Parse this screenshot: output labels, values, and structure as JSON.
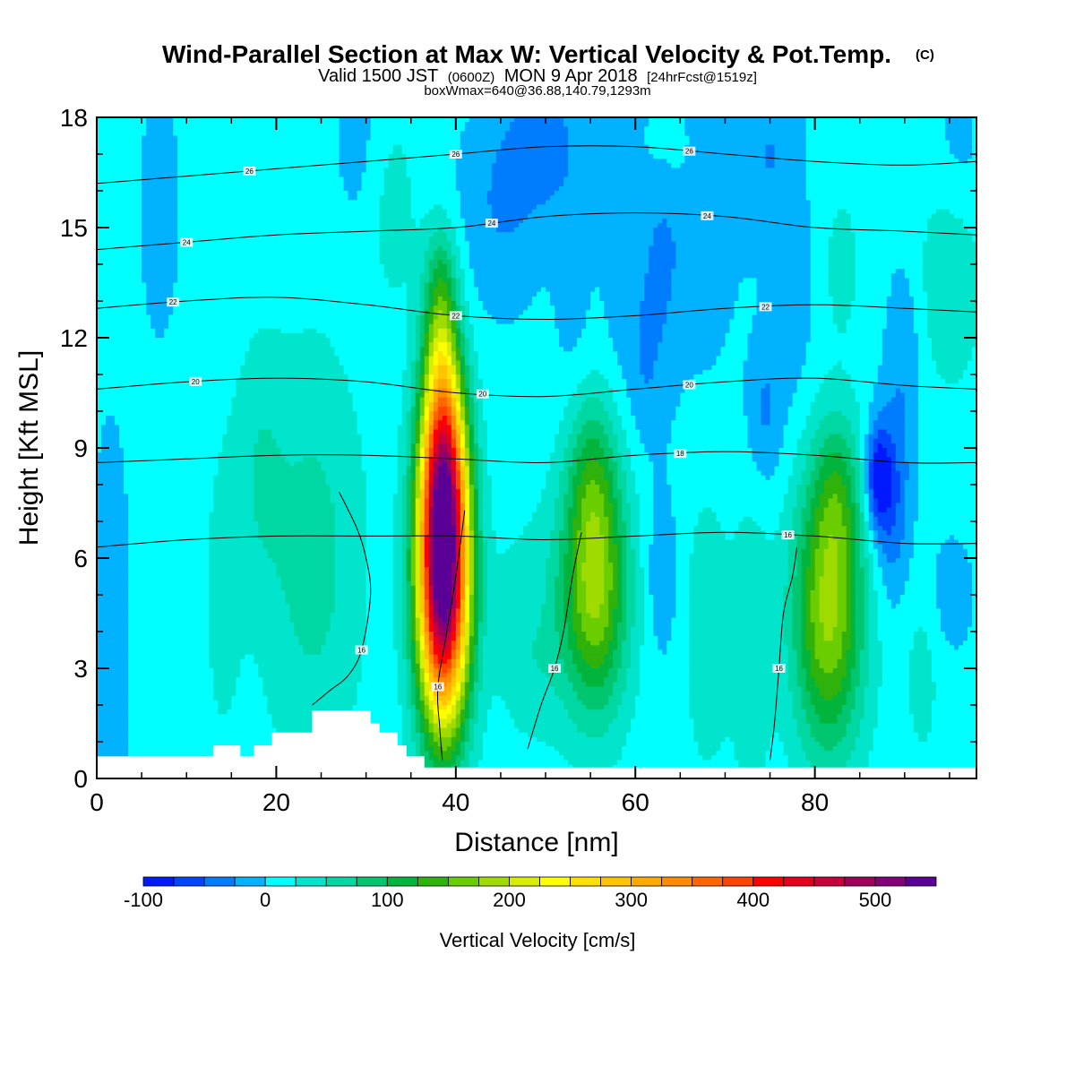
{
  "title": {
    "main": "Wind-Parallel Section at Max W: Vertical Velocity & Pot.Temp.",
    "copyright": "(C)",
    "valid_a": "Valid 1500 JST",
    "valid_z": "(0600Z)",
    "valid_b": "MON 9 Apr 2018",
    "valid_fcst": "[24hrFcst@1519z]",
    "box": "boxWmax=640@36.88,140.79,1293m"
  },
  "chart_data": {
    "type": "heatmap",
    "xlabel": "Distance [nm]",
    "ylabel": "Height [Kft MSL]",
    "xlim": [
      0,
      98
    ],
    "ylim": [
      0,
      18
    ],
    "x_ticks": [
      {
        "value": 0,
        "label": "0"
      },
      {
        "value": 20,
        "label": "20"
      },
      {
        "value": 40,
        "label": "40"
      },
      {
        "value": 60,
        "label": "60"
      },
      {
        "value": 80,
        "label": "80"
      }
    ],
    "y_ticks": [
      {
        "value": 0,
        "label": "0"
      },
      {
        "value": 3,
        "label": "3"
      },
      {
        "value": 6,
        "label": "6"
      },
      {
        "value": 9,
        "label": "9"
      },
      {
        "value": 12,
        "label": "12"
      },
      {
        "value": 15,
        "label": "15"
      },
      {
        "value": 18,
        "label": "18"
      }
    ],
    "background_w": 10,
    "updraft_cells": [
      {
        "x": 38.6,
        "y": 5.4,
        "sx": 2.0,
        "sy": 2.8,
        "amp": 540
      },
      {
        "x": 38.6,
        "y": 8.8,
        "sx": 1.7,
        "sy": 2.0,
        "amp": 230
      },
      {
        "x": 38.3,
        "y": 12.0,
        "sx": 1.4,
        "sy": 1.5,
        "amp": 110
      },
      {
        "x": 38.4,
        "y": 14.0,
        "sx": 1.3,
        "sy": 1.0,
        "amp": 40
      },
      {
        "x": 55.5,
        "y": 5.2,
        "sx": 2.6,
        "sy": 2.4,
        "amp": 170
      },
      {
        "x": 55.2,
        "y": 8.4,
        "sx": 2.0,
        "sy": 1.6,
        "amp": 60
      },
      {
        "x": 81.5,
        "y": 4.5,
        "sx": 2.8,
        "sy": 2.7,
        "amp": 170
      },
      {
        "x": 82.5,
        "y": 7.8,
        "sx": 1.8,
        "sy": 1.5,
        "amp": 60
      },
      {
        "x": 24.0,
        "y": 6.0,
        "sx": 4.0,
        "sy": 4.0,
        "amp": 50
      },
      {
        "x": 18.0,
        "y": 8.5,
        "sx": 2.0,
        "sy": 2.5,
        "amp": 30
      },
      {
        "x": 14.0,
        "y": 5.0,
        "sx": 1.5,
        "sy": 3.0,
        "amp": 25
      },
      {
        "x": 48.5,
        "y": 4.0,
        "sx": 3.0,
        "sy": 2.0,
        "amp": 40
      },
      {
        "x": 68.0,
        "y": 4.0,
        "sx": 2.0,
        "sy": 3.0,
        "amp": 30
      },
      {
        "x": 73.0,
        "y": 3.5,
        "sx": 1.5,
        "sy": 3.0,
        "amp": 35
      },
      {
        "x": 92.0,
        "y": 3.0,
        "sx": 1.5,
        "sy": 2.0,
        "amp": 25
      },
      {
        "x": 95.0,
        "y": 13.5,
        "sx": 2.5,
        "sy": 2.0,
        "amp": 40
      },
      {
        "x": 64.0,
        "y": 17.0,
        "sx": 3.0,
        "sy": 1.0,
        "amp": 20
      },
      {
        "x": 83.0,
        "y": 14.0,
        "sx": 1.5,
        "sy": 1.5,
        "amp": 25
      },
      {
        "x": 33.0,
        "y": 15.5,
        "sx": 2.0,
        "sy": 2.0,
        "amp": 25
      }
    ],
    "downdraft_cells": [
      {
        "x": 1.5,
        "y": 4.0,
        "sx": 1.5,
        "sy": 4.0,
        "amp": -30
      },
      {
        "x": 7.0,
        "y": 15.5,
        "sx": 1.8,
        "sy": 3.0,
        "amp": -20
      },
      {
        "x": 29.0,
        "y": 17.5,
        "sx": 2.0,
        "sy": 2.0,
        "amp": -20
      },
      {
        "x": 45.0,
        "y": 15.5,
        "sx": 3.5,
        "sy": 2.0,
        "amp": -35
      },
      {
        "x": 50.0,
        "y": 17.3,
        "sx": 3.0,
        "sy": 1.3,
        "amp": -45
      },
      {
        "x": 53.0,
        "y": 13.0,
        "sx": 1.5,
        "sy": 2.0,
        "amp": -20
      },
      {
        "x": 59.0,
        "y": 15.0,
        "sx": 2.0,
        "sy": 3.5,
        "amp": -30
      },
      {
        "x": 61.0,
        "y": 11.0,
        "sx": 1.2,
        "sy": 1.5,
        "amp": -20
      },
      {
        "x": 63.0,
        "y": 14.0,
        "sx": 1.5,
        "sy": 3.0,
        "amp": -30
      },
      {
        "x": 67.5,
        "y": 15.5,
        "sx": 2.5,
        "sy": 3.0,
        "amp": -35
      },
      {
        "x": 75.0,
        "y": 17.0,
        "sx": 2.5,
        "sy": 2.0,
        "amp": -35
      },
      {
        "x": 74.5,
        "y": 10.0,
        "sx": 1.5,
        "sy": 1.5,
        "amp": -40
      },
      {
        "x": 78.0,
        "y": 12.5,
        "sx": 1.5,
        "sy": 2.0,
        "amp": -20
      },
      {
        "x": 87.0,
        "y": 8.2,
        "sx": 1.0,
        "sy": 1.0,
        "amp": -90
      },
      {
        "x": 88.5,
        "y": 7.5,
        "sx": 1.5,
        "sy": 1.8,
        "amp": -60
      },
      {
        "x": 90.0,
        "y": 11.5,
        "sx": 1.5,
        "sy": 2.0,
        "amp": -30
      },
      {
        "x": 63.0,
        "y": 5.5,
        "sx": 1.2,
        "sy": 1.5,
        "amp": -35
      },
      {
        "x": 48.5,
        "y": 5.0,
        "sx": 1.2,
        "sy": 0.8,
        "amp": -15
      },
      {
        "x": 95.0,
        "y": 5.0,
        "sx": 2.0,
        "sy": 1.2,
        "amp": -25
      },
      {
        "x": 96.0,
        "y": 17.0,
        "sx": 2.0,
        "sy": 1.5,
        "amp": -20
      }
    ],
    "terrain": [
      [
        0,
        0.6
      ],
      [
        13,
        0.6
      ],
      [
        13,
        0.9
      ],
      [
        16,
        0.9
      ],
      [
        16,
        0.6
      ],
      [
        17.5,
        0.6
      ],
      [
        17.5,
        0.9
      ],
      [
        19.5,
        0.9
      ],
      [
        19.5,
        1.25
      ],
      [
        24,
        1.25
      ],
      [
        24,
        1.85
      ],
      [
        30.5,
        1.85
      ],
      [
        30.5,
        1.5
      ],
      [
        31.5,
        1.5
      ],
      [
        31.5,
        1.25
      ],
      [
        33.5,
        1.25
      ],
      [
        33.5,
        0.9
      ],
      [
        34.5,
        0.9
      ],
      [
        34.5,
        0.6
      ],
      [
        36.5,
        0.6
      ],
      [
        36.5,
        0.3
      ],
      [
        98,
        0.3
      ]
    ],
    "theta_contours": [
      {
        "label": "16",
        "points": [
          [
            0,
            6.3
          ],
          [
            10,
            6.5
          ],
          [
            20,
            6.6
          ],
          [
            30,
            6.6
          ],
          [
            40,
            6.6
          ],
          [
            50,
            6.5
          ],
          [
            60,
            6.6
          ],
          [
            70,
            6.7
          ],
          [
            80,
            6.6
          ],
          [
            90,
            6.4
          ],
          [
            98,
            6.4
          ]
        ],
        "labels_at": [
          77
        ]
      },
      {
        "label": "18",
        "points": [
          [
            0,
            8.6
          ],
          [
            10,
            8.7
          ],
          [
            20,
            8.8
          ],
          [
            30,
            8.8
          ],
          [
            40,
            8.7
          ],
          [
            50,
            8.6
          ],
          [
            60,
            8.8
          ],
          [
            70,
            8.9
          ],
          [
            80,
            8.8
          ],
          [
            90,
            8.6
          ],
          [
            98,
            8.6
          ]
        ],
        "labels_at": [
          65
        ]
      },
      {
        "label": "20",
        "points": [
          [
            0,
            10.6
          ],
          [
            10,
            10.8
          ],
          [
            20,
            10.9
          ],
          [
            30,
            10.8
          ],
          [
            40,
            10.5
          ],
          [
            50,
            10.4
          ],
          [
            60,
            10.6
          ],
          [
            70,
            10.8
          ],
          [
            80,
            10.9
          ],
          [
            90,
            10.7
          ],
          [
            98,
            10.6
          ]
        ],
        "labels_at": [
          11,
          43,
          66
        ]
      },
      {
        "label": "22",
        "points": [
          [
            0,
            12.8
          ],
          [
            10,
            13.0
          ],
          [
            20,
            13.1
          ],
          [
            30,
            12.9
          ],
          [
            40,
            12.6
          ],
          [
            50,
            12.5
          ],
          [
            60,
            12.6
          ],
          [
            70,
            12.8
          ],
          [
            80,
            12.9
          ],
          [
            90,
            12.8
          ],
          [
            98,
            12.7
          ]
        ],
        "labels_at": [
          8.5,
          40,
          74.5
        ]
      },
      {
        "label": "24",
        "points": [
          [
            0,
            14.4
          ],
          [
            10,
            14.6
          ],
          [
            20,
            14.8
          ],
          [
            30,
            14.9
          ],
          [
            40,
            15.0
          ],
          [
            50,
            15.3
          ],
          [
            60,
            15.4
          ],
          [
            70,
            15.3
          ],
          [
            80,
            15.0
          ],
          [
            90,
            14.9
          ],
          [
            98,
            14.8
          ]
        ],
        "labels_at": [
          10,
          44,
          68
        ]
      },
      {
        "label": "26",
        "points": [
          [
            0,
            16.2
          ],
          [
            10,
            16.4
          ],
          [
            20,
            16.6
          ],
          [
            30,
            16.8
          ],
          [
            40,
            17.0
          ],
          [
            50,
            17.2
          ],
          [
            60,
            17.2
          ],
          [
            70,
            17.0
          ],
          [
            80,
            16.8
          ],
          [
            90,
            16.7
          ],
          [
            98,
            16.8
          ]
        ],
        "labels_at": [
          17,
          40,
          66
        ]
      }
    ],
    "theta16_loops": [
      [
        [
          27,
          7.8
        ],
        [
          29,
          6.8
        ],
        [
          30,
          6.0
        ],
        [
          30.5,
          5.0
        ],
        [
          29.5,
          3.5
        ],
        [
          28,
          2.8
        ],
        [
          26,
          2.4
        ],
        [
          24,
          2.0
        ]
      ],
      [
        [
          41,
          7.3
        ],
        [
          40,
          5.5
        ],
        [
          39,
          4.0
        ],
        [
          38,
          2.5
        ],
        [
          38.2,
          1.4
        ],
        [
          38.5,
          0.5
        ]
      ],
      [
        [
          54,
          6.7
        ],
        [
          53,
          5.5
        ],
        [
          52,
          4.0
        ],
        [
          51,
          3.0
        ],
        [
          49.5,
          2.0
        ],
        [
          48,
          0.8
        ]
      ],
      [
        [
          78,
          6.3
        ],
        [
          77.5,
          5.5
        ],
        [
          76.5,
          4.5
        ],
        [
          76,
          3.0
        ],
        [
          75.5,
          1.5
        ],
        [
          75,
          0.5
        ]
      ]
    ],
    "colorbar": {
      "label": "Vertical Velocity [cm/s]",
      "min": -100,
      "max": 550,
      "tick_labels": [
        {
          "value": -100,
          "label": "-100"
        },
        {
          "value": 0,
          "label": "0"
        },
        {
          "value": 100,
          "label": "100"
        },
        {
          "value": 200,
          "label": "200"
        },
        {
          "value": 300,
          "label": "300"
        },
        {
          "value": 400,
          "label": "400"
        },
        {
          "value": 500,
          "label": "500"
        }
      ],
      "bins": [
        {
          "from": -100,
          "to": -75,
          "color": "#0019ff"
        },
        {
          "from": -75,
          "to": -50,
          "color": "#0046ff"
        },
        {
          "from": -50,
          "to": -25,
          "color": "#007cff"
        },
        {
          "from": -25,
          "to": 0,
          "color": "#00b2ff"
        },
        {
          "from": 0,
          "to": 25,
          "color": "#00ffff"
        },
        {
          "from": 25,
          "to": 50,
          "color": "#00e5cc"
        },
        {
          "from": 50,
          "to": 75,
          "color": "#00d8a3"
        },
        {
          "from": 75,
          "to": 100,
          "color": "#00c670"
        },
        {
          "from": 100,
          "to": 125,
          "color": "#00b43c"
        },
        {
          "from": 125,
          "to": 150,
          "color": "#2fb20b"
        },
        {
          "from": 150,
          "to": 175,
          "color": "#6acd00"
        },
        {
          "from": 175,
          "to": 200,
          "color": "#a0db00"
        },
        {
          "from": 200,
          "to": 225,
          "color": "#d7ee00"
        },
        {
          "from": 225,
          "to": 250,
          "color": "#ffff00"
        },
        {
          "from": 250,
          "to": 275,
          "color": "#ffe000"
        },
        {
          "from": 275,
          "to": 300,
          "color": "#ffc400"
        },
        {
          "from": 300,
          "to": 325,
          "color": "#ffaa00"
        },
        {
          "from": 325,
          "to": 350,
          "color": "#ff8c00"
        },
        {
          "from": 350,
          "to": 375,
          "color": "#ff6600"
        },
        {
          "from": 375,
          "to": 400,
          "color": "#ff4400"
        },
        {
          "from": 400,
          "to": 425,
          "color": "#ff0000"
        },
        {
          "from": 425,
          "to": 450,
          "color": "#e6001e"
        },
        {
          "from": 450,
          "to": 475,
          "color": "#c8003c"
        },
        {
          "from": 475,
          "to": 500,
          "color": "#a0005a"
        },
        {
          "from": 500,
          "to": 525,
          "color": "#820078"
        },
        {
          "from": 525,
          "to": 550,
          "color": "#5a0096"
        }
      ]
    }
  }
}
